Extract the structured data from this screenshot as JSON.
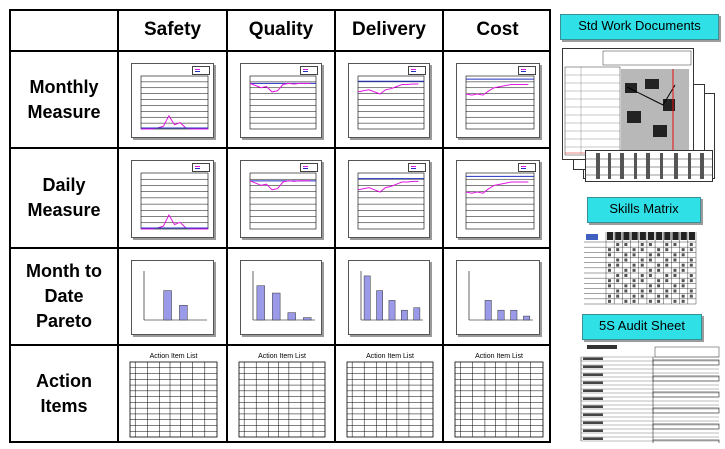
{
  "board": {
    "columns": [
      "Safety",
      "Quality",
      "Delivery",
      "Cost"
    ],
    "rows": [
      {
        "line1": "Monthly",
        "line2": "Measure"
      },
      {
        "line1": "Daily",
        "line2": "Measure"
      },
      {
        "line1": "Month to",
        "line2": "Date",
        "line3": "Pareto"
      },
      {
        "line1": "Action",
        "line2": "Items"
      }
    ],
    "action_title": "Action Item List"
  },
  "trend_charts": {
    "chart_types": [
      "line"
    ],
    "colors": {
      "actual": "#e018e0",
      "target": "#2030c0"
    }
  },
  "pareto": {
    "bar_color": "#9a9ae8",
    "values_by_column": [
      [
        0,
        6,
        3,
        0
      ],
      [
        7,
        5.5,
        1.5,
        0.5
      ],
      [
        9,
        6,
        4,
        2,
        2.5
      ],
      [
        0,
        4,
        2,
        2,
        0.8
      ]
    ]
  },
  "side": {
    "std_work_label": "Std Work Documents",
    "skills_label": "Skills Matrix",
    "audit_label": "5S Audit Sheet"
  }
}
